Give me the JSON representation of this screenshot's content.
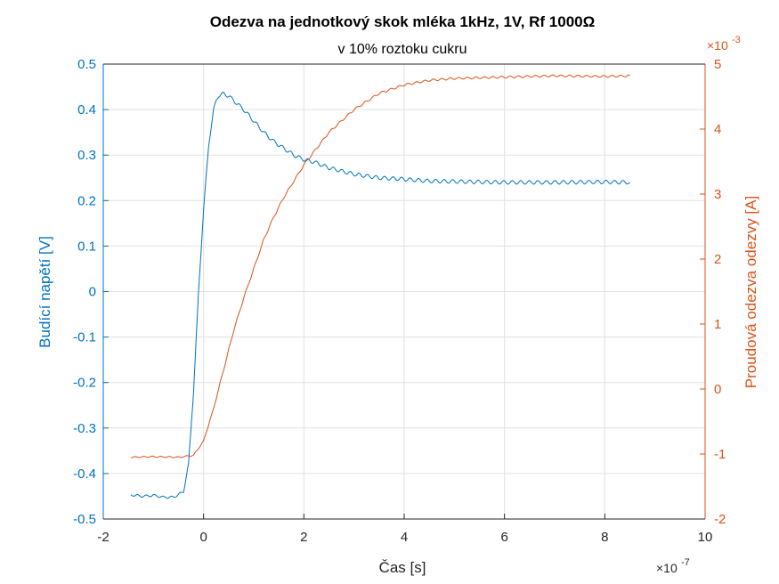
{
  "chart_data": {
    "type": "line",
    "title": "Odezva na jednotkový skok mléka 1kHz, 1V, Rf 1000Ω",
    "subtitle": "v 10% roztoku cukru",
    "xlabel": "Čas [s]",
    "xlim": [
      -2,
      10
    ],
    "x_ticks": [
      "-2",
      "0",
      "2",
      "4",
      "6",
      "8",
      "10"
    ],
    "x_exponent": {
      "base": "×10",
      "power": "-7"
    },
    "y_left": {
      "label": "Budící napětí [V]",
      "lim": [
        -0.5,
        0.5
      ],
      "ticks": [
        "0.5",
        "0.4",
        "0.3",
        "0.2",
        "0.1",
        "0",
        "-0.1",
        "-0.2",
        "-0.3",
        "-0.4",
        "-0.5"
      ],
      "color": "#0072BD"
    },
    "y_right": {
      "label": "Proudová odezva odezvy [A]",
      "lim": [
        -2,
        5
      ],
      "ticks": [
        "5",
        "4",
        "3",
        "2",
        "1",
        "0",
        "-1",
        "-2"
      ],
      "exponent": {
        "base": "×10",
        "power": "-3"
      },
      "color": "#D95319"
    },
    "grid": true,
    "series": [
      {
        "axis": "left",
        "color": "#0072BD",
        "x": [
          -1.45,
          -1.2,
          -1.0,
          -0.8,
          -0.6,
          -0.4,
          -0.3,
          -0.2,
          -0.1,
          0.0,
          0.1,
          0.2,
          0.25,
          0.3,
          0.4,
          0.5,
          0.6,
          0.8,
          1.0,
          1.2,
          1.4,
          1.6,
          1.8,
          2.0,
          2.2,
          2.5,
          3.0,
          3.5,
          4.0,
          4.5,
          5.0,
          6.0,
          7.0,
          8.0,
          8.5
        ],
        "y": [
          -0.447,
          -0.45,
          -0.448,
          -0.452,
          -0.452,
          -0.44,
          -0.38,
          -0.22,
          0.0,
          0.18,
          0.32,
          0.4,
          0.42,
          0.43,
          0.435,
          0.43,
          0.42,
          0.4,
          0.375,
          0.35,
          0.33,
          0.315,
          0.3,
          0.29,
          0.285,
          0.272,
          0.258,
          0.25,
          0.247,
          0.243,
          0.242,
          0.24,
          0.24,
          0.241,
          0.24
        ]
      },
      {
        "axis": "right",
        "color": "#D95319",
        "x": [
          -1.45,
          -1.0,
          -0.5,
          -0.2,
          0.0,
          0.2,
          0.4,
          0.6,
          0.8,
          1.0,
          1.2,
          1.4,
          1.6,
          1.8,
          2.0,
          2.2,
          2.5,
          3.0,
          3.5,
          4.0,
          4.5,
          5.0,
          6.0,
          7.0,
          8.0,
          8.5
        ],
        "y": [
          -1.05,
          -1.04,
          -1.05,
          -1.02,
          -0.8,
          -0.3,
          0.3,
          0.9,
          1.4,
          1.85,
          2.3,
          2.65,
          2.95,
          3.2,
          3.45,
          3.65,
          3.95,
          4.3,
          4.55,
          4.68,
          4.75,
          4.78,
          4.8,
          4.82,
          4.81,
          4.82
        ]
      }
    ]
  }
}
